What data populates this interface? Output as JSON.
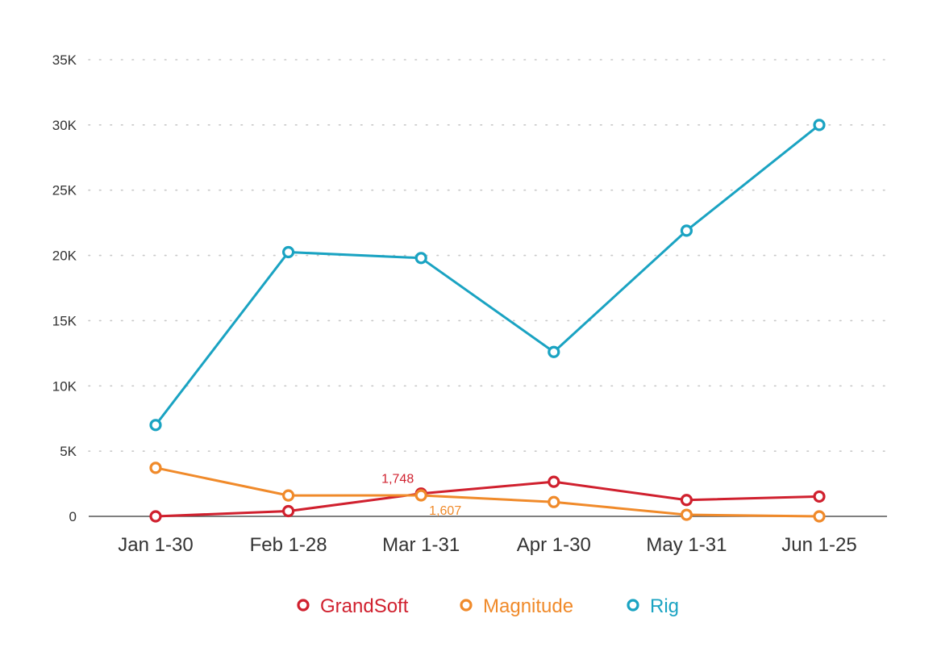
{
  "chart_data": {
    "type": "line",
    "title": "",
    "xlabel": "",
    "ylabel": "",
    "categories": [
      "Jan 1-30",
      "Feb 1-28",
      "Mar 1-31",
      "Apr 1-30",
      "May 1-31",
      "Jun 1-25"
    ],
    "ylim": [
      0,
      35000
    ],
    "yticks": [
      {
        "value": 0,
        "label": "0"
      },
      {
        "value": 5000,
        "label": "5K"
      },
      {
        "value": 10000,
        "label": "10K"
      },
      {
        "value": 15000,
        "label": "15K"
      },
      {
        "value": 20000,
        "label": "20K"
      },
      {
        "value": 25000,
        "label": "25K"
      },
      {
        "value": 30000,
        "label": "30K"
      },
      {
        "value": 35000,
        "label": "35K"
      }
    ],
    "grid": true,
    "legend_position": "bottom",
    "series": [
      {
        "name": "GrandSoft",
        "color": "#d0202e",
        "values": [
          0,
          400,
          1748,
          2650,
          1250,
          1520
        ]
      },
      {
        "name": "Magnitude",
        "color": "#f08a2a",
        "values": [
          3720,
          1600,
          1607,
          1100,
          120,
          0
        ]
      },
      {
        "name": "Rig",
        "color": "#1aa3c2",
        "values": [
          7000,
          20250,
          19800,
          12600,
          21900,
          30000
        ]
      }
    ],
    "annotations": [
      {
        "series": "GrandSoft",
        "index": 2,
        "text": "1,748",
        "placement": "above"
      },
      {
        "series": "Magnitude",
        "index": 2,
        "text": "1,607",
        "placement": "below-right"
      }
    ]
  }
}
